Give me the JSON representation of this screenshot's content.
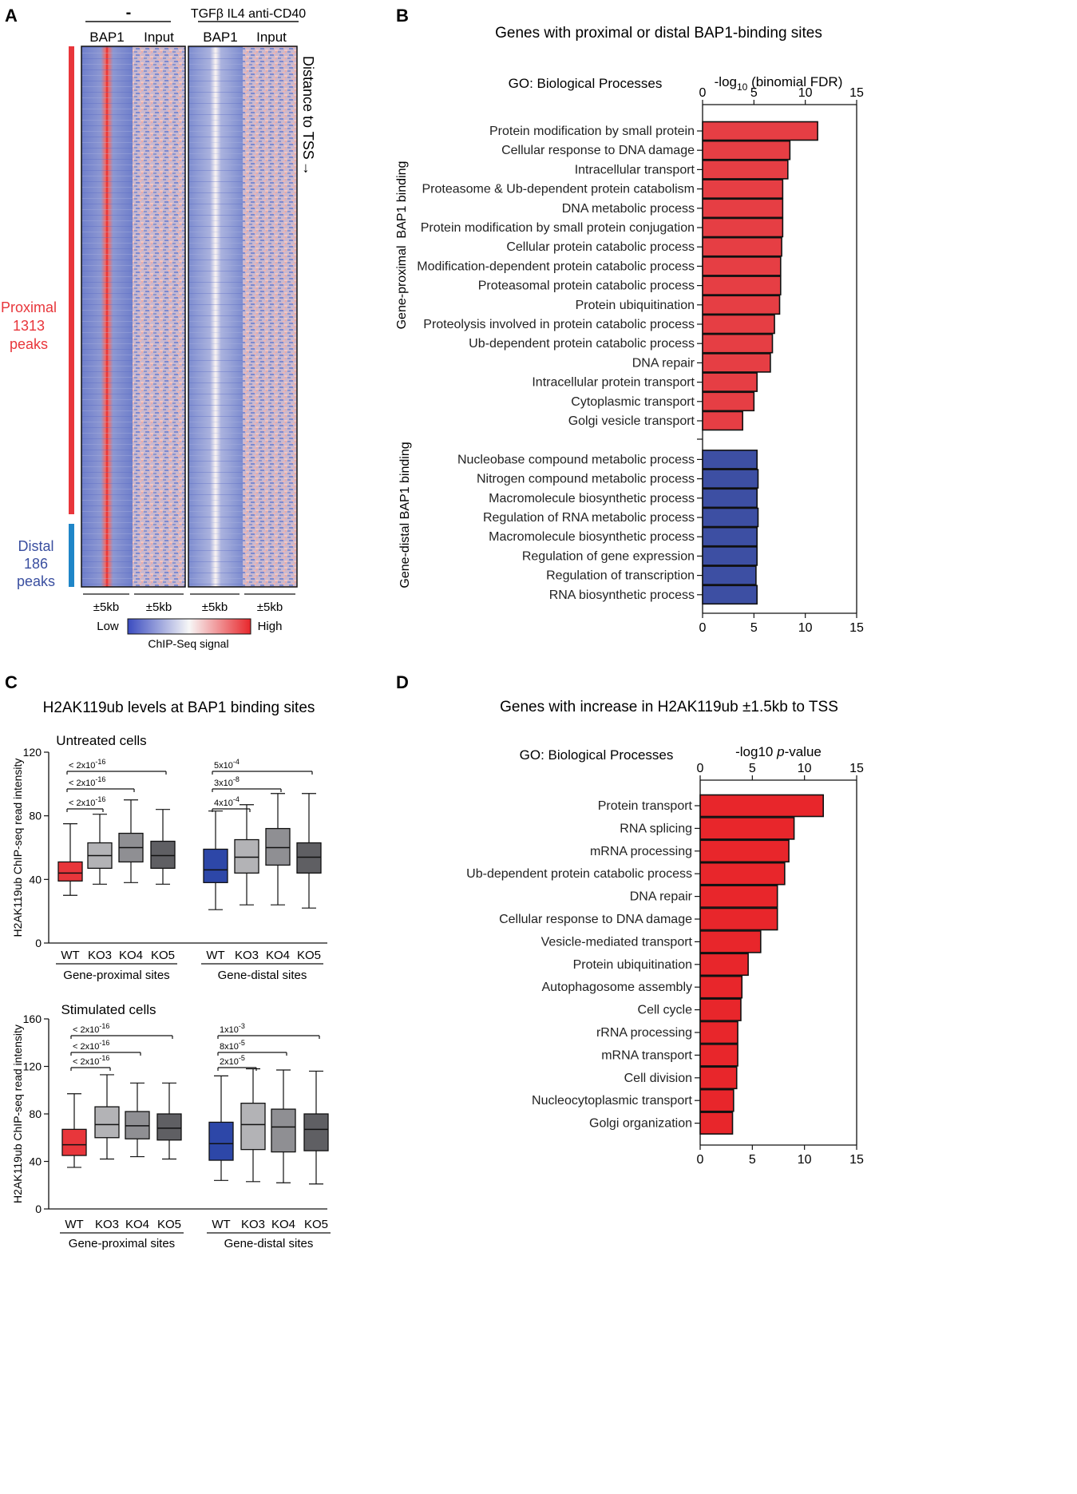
{
  "colors": {
    "red": "#e8363b",
    "red_bar": "#e63e44",
    "blue": "#3d4fa3",
    "blue_box": "#2d47a8",
    "grey1": "#b3b3b6",
    "grey2": "#8f8f93",
    "grey3": "#5f5f63",
    "proximal_label": "#e8363b",
    "distal_label": "#3a4fa0",
    "distal_bar_side": "#1f86c8",
    "heat_low": "#3b4cc0",
    "heat_mid": "#f7f7f7",
    "heat_high": "#e8262b"
  },
  "panel_a": {
    "letter": "A",
    "header_neg": "-",
    "header_stim": "TGFβ IL4 anti-CD40",
    "col_labels": [
      "BAP1",
      "Input",
      "BAP1",
      "Input"
    ],
    "side_label": "Distance to TSS",
    "arrow_glyph": "→",
    "proximal": [
      "Proximal",
      "1313",
      "peaks"
    ],
    "distal": [
      "Distal",
      "186",
      "peaks"
    ],
    "window_labels": [
      "±5kb",
      "±5kb",
      "±5kb",
      "±5kb"
    ],
    "legend_low": "Low",
    "legend_high": "High",
    "legend_title": "ChIP-Seq signal",
    "proximal_count": 1313,
    "distal_count": 186
  },
  "chart_data": [
    {
      "panel": "B",
      "type": "bar",
      "orientation": "horizontal",
      "title": "Genes with proximal or distal BAP1-binding sites",
      "subtitle": "GO: Biological Processes",
      "xlabel_prefix": "-log",
      "xlabel_sub": "10",
      "xlabel_suffix": " (binomial FDR)",
      "xlim": [
        0,
        15
      ],
      "xticks": [
        "0",
        "5",
        "10",
        "15"
      ],
      "groups": [
        {
          "name": "Gene-proximal  BAP1 binding",
          "color": "#e63e44",
          "categories": [
            "Protein modification by small protein",
            "Cellular response to DNA damage",
            "Intracellular transport",
            "Proteasome & Ub-dependent protein catabolism",
            "DNA metabolic process",
            "Protein modification by small protein conjugation",
            "Cellular protein catabolic process",
            "Modification-dependent protein catabolic process",
            "Proteasomal protein catabolic process",
            "Protein ubiquitination",
            "Proteolysis involved in protein catabolic process",
            "Ub-dependent protein catabolic process",
            "DNA repair",
            "Intracellular protein transport",
            "Cytoplasmic transport",
            "Golgi vesicle transport"
          ],
          "values": [
            11.2,
            8.5,
            8.3,
            7.8,
            7.8,
            7.8,
            7.7,
            7.6,
            7.6,
            7.5,
            7.0,
            6.8,
            6.6,
            5.3,
            5.0,
            3.9
          ]
        },
        {
          "name": "Gene-distal BAP1 binding",
          "color": "#3d4fa3",
          "categories": [
            "Nucleobase compound metabolic process",
            "Nitrogen compound metabolic process",
            "Macromolecule biosynthetic process",
            "Regulation of RNA metabolic process",
            "Macromolecule biosynthetic process",
            "Regulation of gene expression",
            "Regulation of transcription",
            "RNA biosynthetic process"
          ],
          "values": [
            5.3,
            5.4,
            5.3,
            5.4,
            5.3,
            5.3,
            5.2,
            5.3
          ]
        }
      ]
    },
    {
      "panel": "C",
      "type": "box",
      "title": "H2AK119ub levels at BAP1 binding sites",
      "ylabel": "H2AK119ub ChIP-seq read intensity",
      "categories": [
        "WT",
        "KO3",
        "KO4",
        "KO5"
      ],
      "group_labels": [
        "Gene-proximal sites",
        "Gene-distal sites"
      ],
      "subplots": [
        {
          "name": "Untreated cells",
          "ylim": [
            0,
            120
          ],
          "yticks": [
            "0",
            "40",
            "80",
            "120"
          ],
          "boxes": {
            "proximal": [
              {
                "min": 30,
                "q1": 39,
                "median": 44,
                "q3": 51,
                "max": 75
              },
              {
                "min": 37,
                "q1": 47,
                "median": 55,
                "q3": 63,
                "max": 81
              },
              {
                "min": 38,
                "q1": 51,
                "median": 60,
                "q3": 69,
                "max": 90
              },
              {
                "min": 37,
                "q1": 47,
                "median": 55,
                "q3": 64,
                "max": 84
              }
            ],
            "distal": [
              {
                "min": 21,
                "q1": 38,
                "median": 46,
                "q3": 59,
                "max": 83
              },
              {
                "min": 24,
                "q1": 44,
                "median": 54,
                "q3": 65,
                "max": 87
              },
              {
                "min": 24,
                "q1": 49,
                "median": 60,
                "q3": 72,
                "max": 94
              },
              {
                "min": 22,
                "q1": 44,
                "median": 54,
                "q3": 63,
                "max": 94
              }
            ]
          },
          "pvalues": {
            "proximal": [
              {
                "label": "< 2x10",
                "exp": "-16",
                "compare": "KO5"
              },
              {
                "label": "< 2x10",
                "exp": "-16",
                "compare": "KO4"
              },
              {
                "label": "< 2x10",
                "exp": "-16",
                "compare": "KO3"
              }
            ],
            "distal": [
              {
                "label": "5x10",
                "exp": "-4",
                "compare": "KO5"
              },
              {
                "label": "3x10",
                "exp": "-8",
                "compare": "KO4"
              },
              {
                "label": "4x10",
                "exp": "-4",
                "compare": "KO3"
              }
            ]
          }
        },
        {
          "name": "Stimulated cells",
          "ylim": [
            0,
            160
          ],
          "yticks": [
            "0",
            "40",
            "80",
            "120",
            "160"
          ],
          "boxes": {
            "proximal": [
              {
                "min": 35,
                "q1": 45,
                "median": 54,
                "q3": 67,
                "max": 97
              },
              {
                "min": 42,
                "q1": 60,
                "median": 71,
                "q3": 86,
                "max": 113
              },
              {
                "min": 44,
                "q1": 59,
                "median": 70,
                "q3": 82,
                "max": 106
              },
              {
                "min": 42,
                "q1": 58,
                "median": 68,
                "q3": 80,
                "max": 106
              }
            ],
            "distal": [
              {
                "min": 24,
                "q1": 41,
                "median": 55,
                "q3": 73,
                "max": 112
              },
              {
                "min": 23,
                "q1": 50,
                "median": 71,
                "q3": 89,
                "max": 118
              },
              {
                "min": 22,
                "q1": 48,
                "median": 69,
                "q3": 84,
                "max": 117
              },
              {
                "min": 21,
                "q1": 49,
                "median": 67,
                "q3": 80,
                "max": 116
              }
            ]
          },
          "pvalues": {
            "proximal": [
              {
                "label": "< 2x10",
                "exp": "-16",
                "compare": "KO5"
              },
              {
                "label": "< 2x10",
                "exp": "-16",
                "compare": "KO4"
              },
              {
                "label": "< 2x10",
                "exp": "-16",
                "compare": "KO3"
              }
            ],
            "distal": [
              {
                "label": "1x10",
                "exp": "-3",
                "compare": "KO5"
              },
              {
                "label": "8x10",
                "exp": "-5",
                "compare": "KO4"
              },
              {
                "label": "2x10",
                "exp": "-5",
                "compare": "KO3"
              }
            ]
          }
        }
      ]
    },
    {
      "panel": "D",
      "type": "bar",
      "orientation": "horizontal",
      "title": "Genes with increase in H2AK119ub ±1.5kb to TSS",
      "subtitle": "GO: Biological Processes",
      "xlabel_prefix": "-log10 ",
      "xlabel_italic": "p",
      "xlabel_suffix": "-value",
      "xlim": [
        0,
        15
      ],
      "xticks": [
        "0",
        "5",
        "10",
        "15"
      ],
      "color": "#e8262b",
      "categories": [
        "Protein transport",
        "RNA splicing",
        "mRNA processing",
        "Ub-dependent protein catabolic process",
        "DNA repair",
        "Cellular response to DNA damage",
        "Vesicle-mediated transport",
        "Protein ubiquitination",
        "Autophagosome assembly",
        "Cell cycle",
        "rRNA processing",
        "mRNA transport",
        "Cell division",
        "Nucleocytoplasmic transport",
        "Golgi organization"
      ],
      "values": [
        11.8,
        9.0,
        8.5,
        8.1,
        7.4,
        7.4,
        5.8,
        4.6,
        4.0,
        3.9,
        3.6,
        3.6,
        3.5,
        3.2,
        3.1
      ]
    }
  ]
}
